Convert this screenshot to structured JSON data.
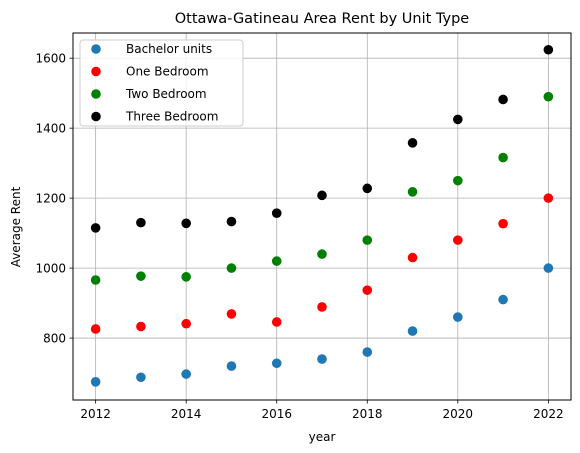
{
  "chart_data": {
    "type": "scatter",
    "title": "Ottawa-Gatineau Area Rent by Unit Type",
    "xlabel": "year",
    "ylabel": "Average Rent",
    "xlim": [
      2011.5,
      2022.5
    ],
    "ylim": [
      623,
      1672
    ],
    "xticks": [
      2012,
      2014,
      2016,
      2018,
      2020,
      2022
    ],
    "yticks": [
      800,
      1000,
      1200,
      1400,
      1600
    ],
    "grid": true,
    "legend_position": "upper-left",
    "x": [
      2012,
      2013,
      2014,
      2015,
      2016,
      2017,
      2018,
      2019,
      2020,
      2021,
      2022
    ],
    "series": [
      {
        "name": "Bachelor units",
        "color": "#1f77b4",
        "values": [
          675,
          688,
          697,
          720,
          728,
          740,
          760,
          820,
          860,
          910,
          1000
        ]
      },
      {
        "name": "One Bedroom",
        "color": "#ff0000",
        "values": [
          826,
          833,
          841,
          869,
          846,
          889,
          937,
          1030,
          1080,
          1127,
          1200
        ]
      },
      {
        "name": "Two Bedroom",
        "color": "#008000",
        "values": [
          966,
          977,
          975,
          1000,
          1020,
          1040,
          1080,
          1218,
          1250,
          1316,
          1490
        ]
      },
      {
        "name": "Three Bedroom",
        "color": "#000000",
        "values": [
          1115,
          1130,
          1128,
          1133,
          1157,
          1208,
          1228,
          1358,
          1425,
          1482,
          1624
        ]
      }
    ]
  }
}
